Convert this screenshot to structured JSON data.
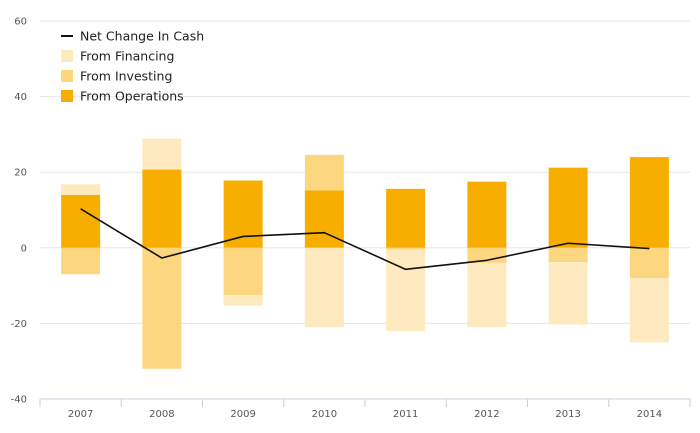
{
  "chart_data": {
    "type": "bar",
    "stacked": true,
    "categories": [
      "2007",
      "2008",
      "2009",
      "2010",
      "2011",
      "2012",
      "2013",
      "2014"
    ],
    "series": [
      {
        "name": "From Operations",
        "kind": "bar",
        "color": "#f7ae00",
        "values": [
          14,
          20.7,
          17.8,
          15.2,
          15.6,
          17.5,
          21.2,
          24.0
        ]
      },
      {
        "name": "From Investing",
        "kind": "bar",
        "color": "#fdd77f",
        "values": [
          -7.0,
          -32.0,
          -12.5,
          9.4,
          -0.5,
          -4.0,
          -3.8,
          -8.0
        ]
      },
      {
        "name": "From Financing",
        "kind": "bar",
        "color": "#ffeabf",
        "values": [
          2.8,
          8.2,
          -2.8,
          -21.0,
          -21.5,
          -17.0,
          -16.5,
          -17.0
        ]
      },
      {
        "name": "Net Change In Cash",
        "kind": "line",
        "color": "#111111",
        "values": [
          10.3,
          -2.7,
          3.0,
          4.0,
          -5.7,
          -3.3,
          1.2,
          -0.2
        ]
      }
    ],
    "ylim": [
      -40,
      60
    ],
    "yticks": [
      -40,
      -20,
      0,
      20,
      40,
      60
    ],
    "grid": true,
    "legend_position": "top-left",
    "legend_order": [
      "Net Change In Cash",
      "From Financing",
      "From Investing",
      "From Operations"
    ],
    "title": "",
    "xlabel": "",
    "ylabel": ""
  }
}
